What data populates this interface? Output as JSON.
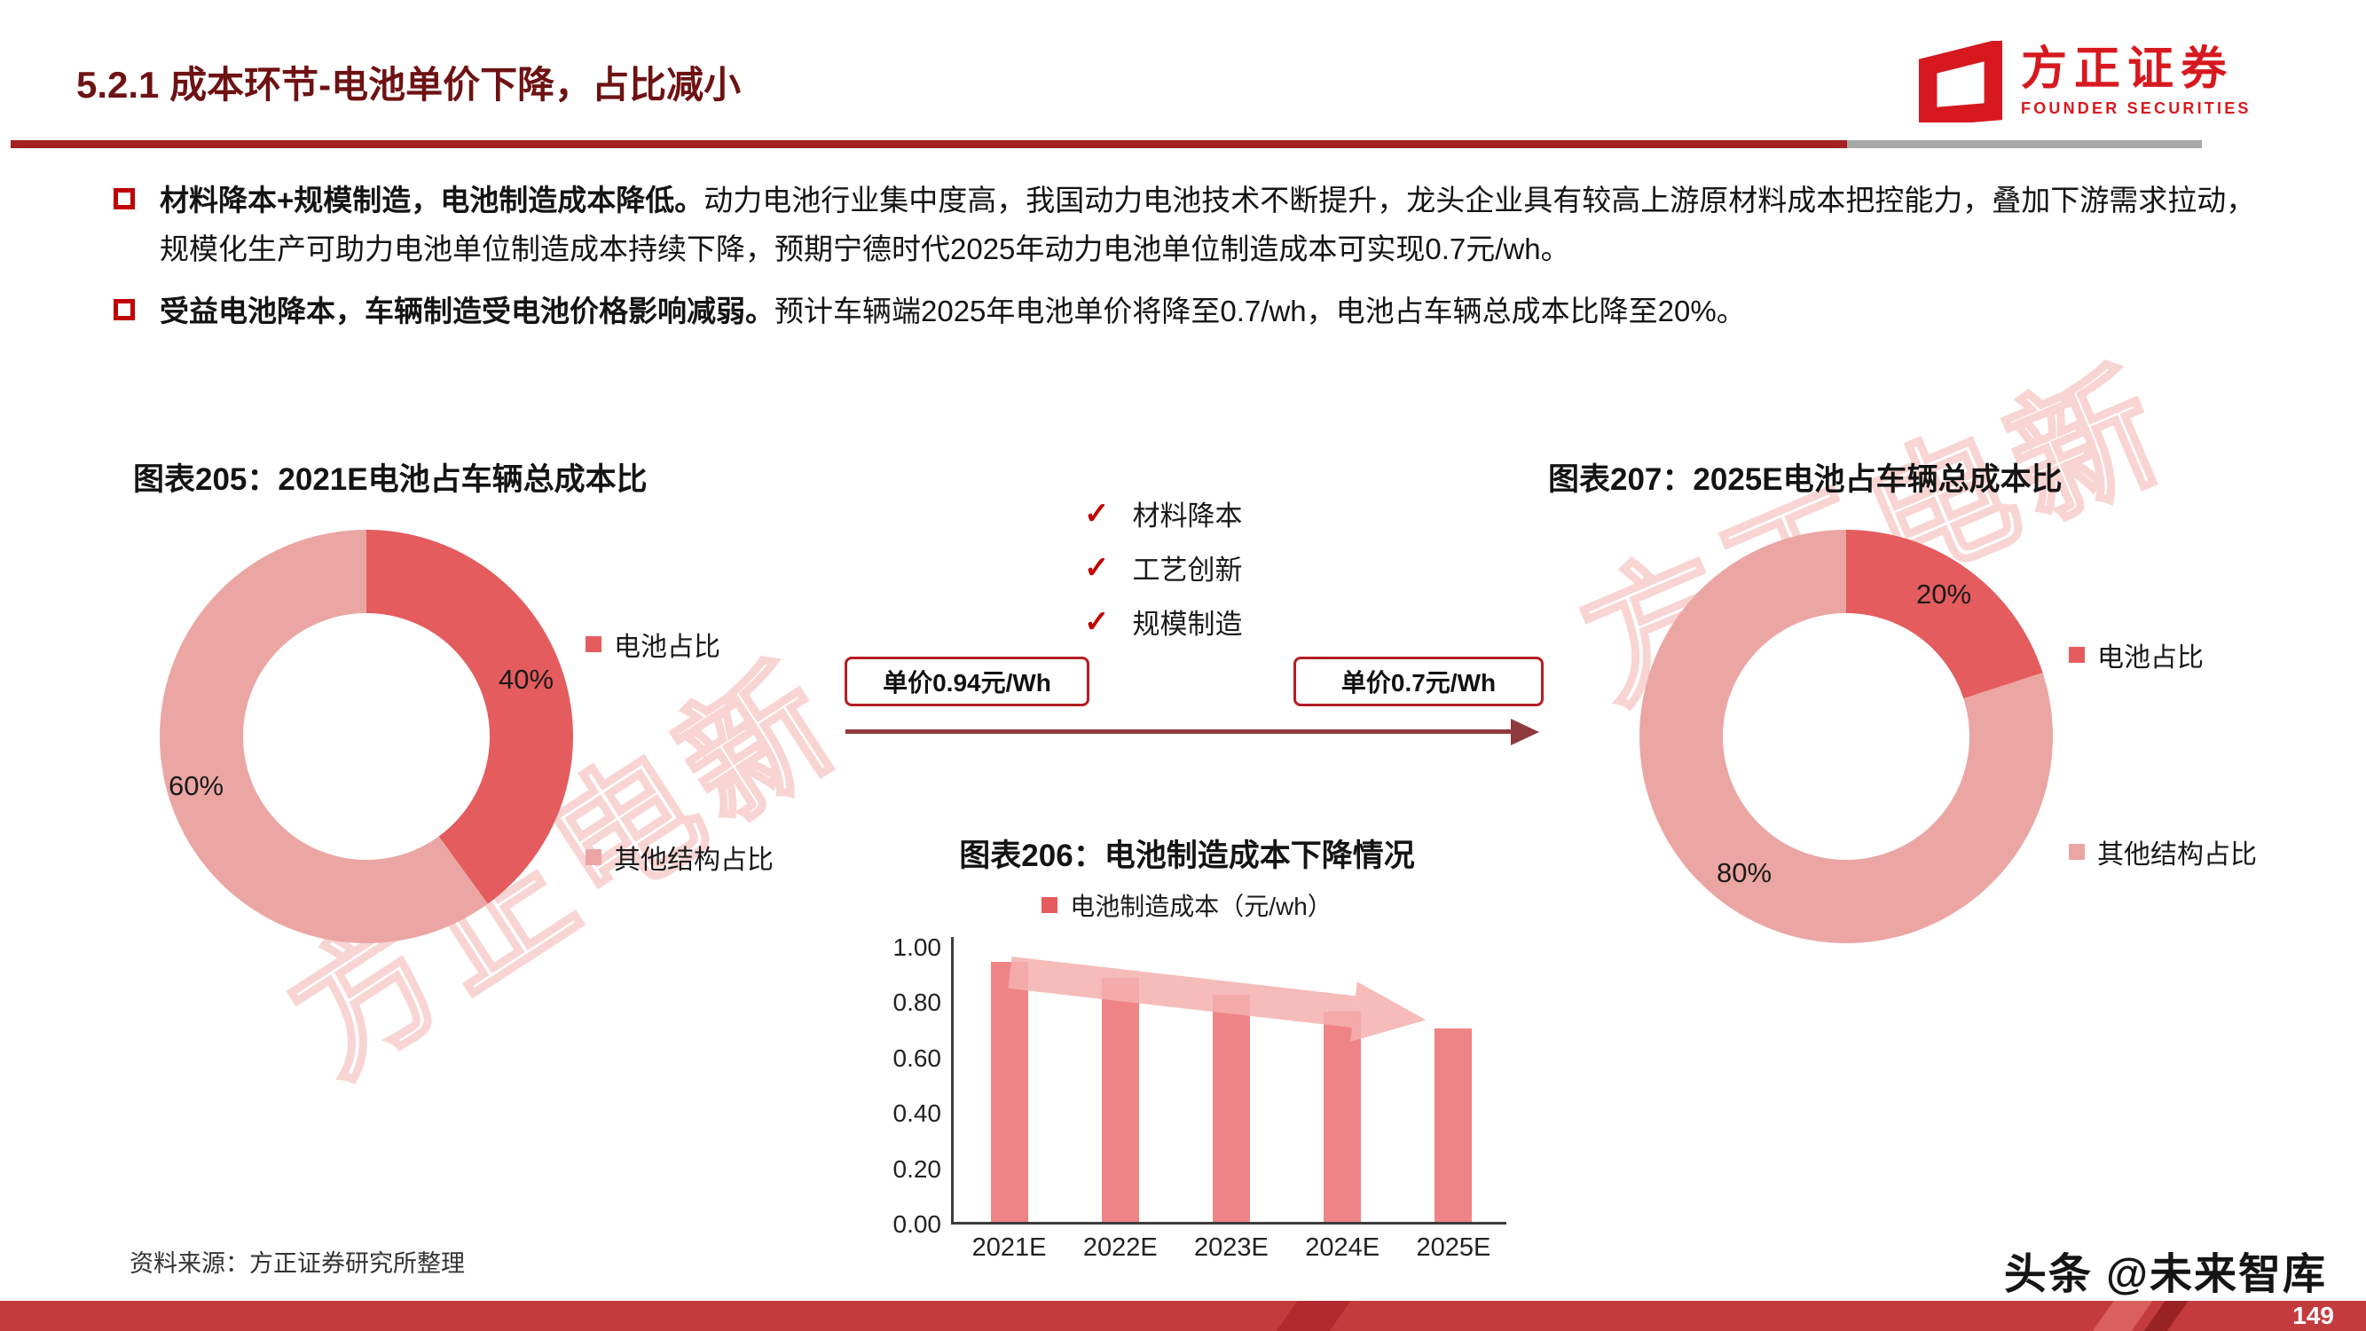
{
  "header": {
    "title": "5.2.1 成本环节-电池单价下降，占比减小"
  },
  "logo": {
    "cn": "方正证券",
    "en": "FOUNDER SECURITIES"
  },
  "bullets": [
    {
      "bold": "材料降本+规模制造，电池制造成本降低。",
      "text": "动力电池行业集中度高，我国动力电池技术不断提升，龙头企业具有较高上游原材料成本把控能力，叠加下游需求拉动，规模化生产可助力电池单位制造成本持续下降，预期宁德时代2025年动力电池单位制造成本可实现0.7元/wh。"
    },
    {
      "bold": "受益电池降本，车辆制造受电池价格影响减弱。",
      "text": "预计车辆端2025年电池单价将降至0.7/wh，电池占车辆总成本比降至20%。"
    }
  ],
  "middle": {
    "checklist": [
      "材料降本",
      "工艺创新",
      "规模制造"
    ],
    "price_left": "单价0.94元/Wh",
    "price_right": "单价0.7元/Wh"
  },
  "chart_data": [
    {
      "type": "pie",
      "donut": true,
      "title": "图表205：2021E电池占车辆总成本比",
      "start_angle": "top",
      "direction": "clockwise",
      "slices": [
        {
          "label": "电池占比",
          "value": 40,
          "display": "40%",
          "color": "#e45c5e"
        },
        {
          "label": "其他结构占比",
          "value": 60,
          "display": "60%",
          "color": "#eba6a3"
        }
      ],
      "legend_position": "right"
    },
    {
      "type": "bar",
      "title": "图表206：电池制造成本下降情况",
      "legend": "电池制造成本（元/wh）",
      "legend_color": "#e45c5e",
      "categories": [
        "2021E",
        "2022E",
        "2023E",
        "2024E",
        "2025E"
      ],
      "values": [
        0.94,
        0.88,
        0.82,
        0.76,
        0.7
      ],
      "ylim": [
        0,
        1.0
      ],
      "yticks": [
        1.0,
        0.8,
        0.6,
        0.4,
        0.2,
        0.0
      ],
      "ytick_labels": [
        "1.00",
        "0.80",
        "0.60",
        "0.40",
        "0.20",
        "0.00"
      ],
      "bar_color": "#ef8486",
      "grid": false
    },
    {
      "type": "pie",
      "donut": true,
      "title": "图表207：2025E电池占车辆总成本比",
      "start_angle": "top",
      "direction": "clockwise",
      "slices": [
        {
          "label": "电池占比",
          "value": 20,
          "display": "20%",
          "color": "#e45c5e"
        },
        {
          "label": "其他结构占比",
          "value": 80,
          "display": "80%",
          "color": "#eba6a3"
        }
      ],
      "legend_position": "right"
    }
  ],
  "footer": {
    "source": "资料来源：方正证券研究所整理",
    "headline_watermark": "头条 @未来智库",
    "page_number": "149"
  },
  "watermark": {
    "text": "方正电新"
  },
  "colors": {
    "accent_red": "#c00000",
    "logo_red": "#d7191f",
    "footer_red": "#c43b3d",
    "rule_red": "#a5201f",
    "rule_gray": "#a8a8a8"
  }
}
